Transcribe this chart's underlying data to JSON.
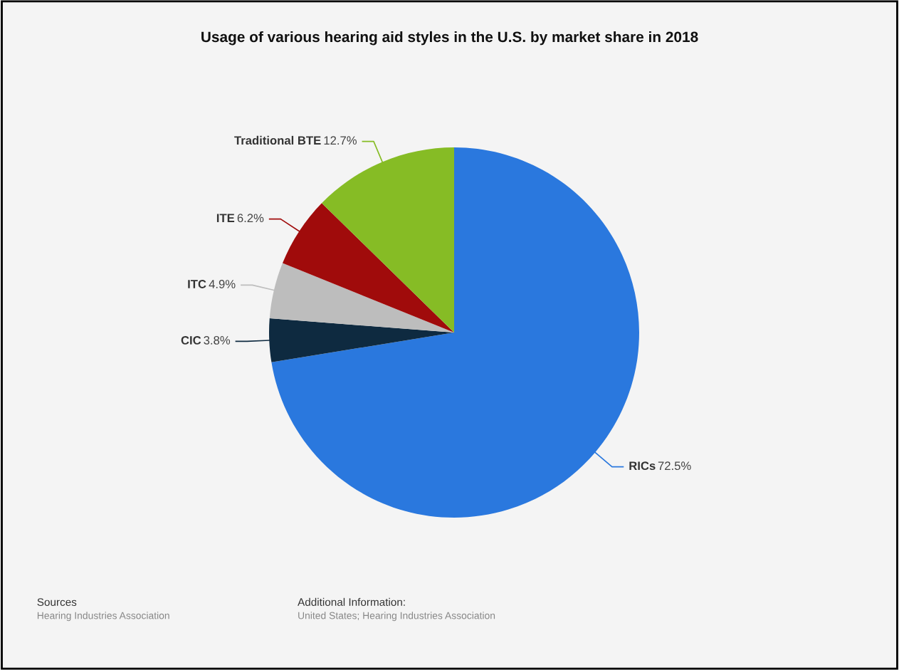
{
  "chart_data": {
    "type": "pie",
    "title": "Usage of various hearing aid styles in the U.S. by market share in 2018",
    "categories": [
      "RICs",
      "CIC",
      "ITC",
      "ITE",
      "Traditional BTE"
    ],
    "values": [
      72.5,
      3.8,
      4.9,
      6.2,
      12.7
    ],
    "value_labels": [
      "72.5%",
      "3.8%",
      "4.9%",
      "6.2%",
      "12.7%"
    ],
    "colors": [
      "#2a78de",
      "#0e2a40",
      "#bdbdbd",
      "#a00b0b",
      "#86bc25"
    ],
    "annotations": [
      "Sources",
      "Hearing Industries Association",
      "Additional Information:",
      "United States; Hearing Industries Association"
    ]
  }
}
